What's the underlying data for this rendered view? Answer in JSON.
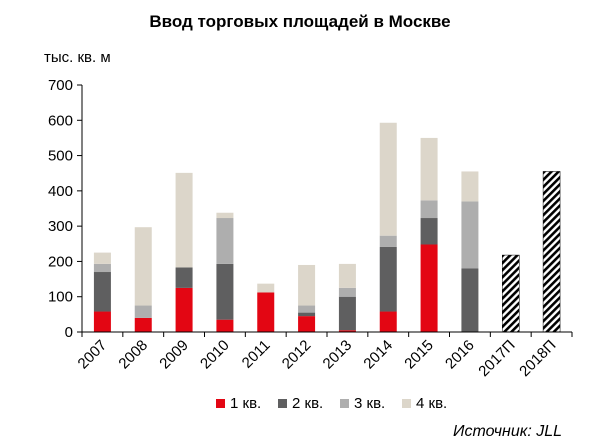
{
  "chart_data": {
    "type": "bar",
    "stacked": true,
    "title": "Ввод торговых площадей в Москве",
    "ylabel": "тыс. кв. м",
    "ylim": [
      0,
      700
    ],
    "yticks": [
      0,
      100,
      200,
      300,
      400,
      500,
      600,
      700
    ],
    "yticks_labels": [
      "0",
      "100",
      "200",
      "300",
      "400",
      "500",
      "600",
      "700"
    ],
    "grid": false,
    "legend_position": "bottom",
    "categories": [
      "2007",
      "2008",
      "2009",
      "2010",
      "2011",
      "2012",
      "2013",
      "2014",
      "2015",
      "2016",
      "2017П",
      "2018П"
    ],
    "series": [
      {
        "name": "1 кв.",
        "color": "#e30613",
        "values": [
          58,
          40,
          125,
          35,
          112,
          45,
          5,
          58,
          248,
          0,
          0,
          0
        ]
      },
      {
        "name": "2 кв.",
        "color": "#5f5f60",
        "values": [
          112,
          0,
          58,
          158,
          0,
          10,
          95,
          183,
          75,
          180,
          0,
          0
        ]
      },
      {
        "name": "3 кв.",
        "color": "#aeaeae",
        "values": [
          23,
          35,
          0,
          130,
          0,
          20,
          25,
          32,
          50,
          190,
          0,
          0
        ]
      },
      {
        "name": "4 кв.",
        "color": "#dcd6ca",
        "values": [
          32,
          222,
          268,
          15,
          25,
          115,
          68,
          320,
          177,
          85,
          0,
          0
        ]
      }
    ],
    "forecast": {
      "color": "#000000",
      "pattern": "hatched",
      "values": [
        0,
        0,
        0,
        0,
        0,
        0,
        0,
        0,
        0,
        0,
        218,
        455
      ]
    }
  },
  "source": "Источник: JLL"
}
